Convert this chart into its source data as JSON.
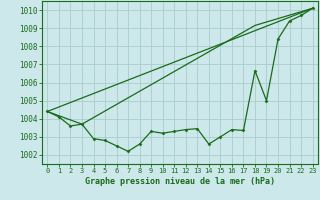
{
  "title": "Graphe pression niveau de la mer (hPa)",
  "background_color": "#cce8ea",
  "grid_color": "#aacccc",
  "line_color": "#1a6b1a",
  "xlim": [
    -0.5,
    23.5
  ],
  "ylim": [
    1001.5,
    1010.5
  ],
  "yticks": [
    1002,
    1003,
    1004,
    1005,
    1006,
    1007,
    1008,
    1009,
    1010
  ],
  "xticks": [
    0,
    1,
    2,
    3,
    4,
    5,
    6,
    7,
    8,
    9,
    10,
    11,
    12,
    13,
    14,
    15,
    16,
    17,
    18,
    19,
    20,
    21,
    22,
    23
  ],
  "line1_x": [
    0,
    1,
    2,
    3,
    4,
    5,
    6,
    7,
    8,
    9,
    10,
    11,
    12,
    13,
    14,
    15,
    16,
    17,
    18,
    19,
    20,
    21,
    22,
    23
  ],
  "line1_y": [
    1004.4,
    1004.1,
    1003.6,
    1003.7,
    1002.9,
    1002.8,
    1002.5,
    1002.2,
    1002.6,
    1003.3,
    1003.2,
    1003.3,
    1003.4,
    1003.45,
    1002.6,
    1003.0,
    1003.4,
    1003.35,
    1006.65,
    1005.0,
    1008.4,
    1009.4,
    1009.7,
    1010.1
  ],
  "line2_x": [
    0,
    23
  ],
  "line2_y": [
    1004.4,
    1010.1
  ],
  "line3_x": [
    0,
    3,
    18,
    23
  ],
  "line3_y": [
    1004.4,
    1003.7,
    1009.15,
    1010.1
  ]
}
